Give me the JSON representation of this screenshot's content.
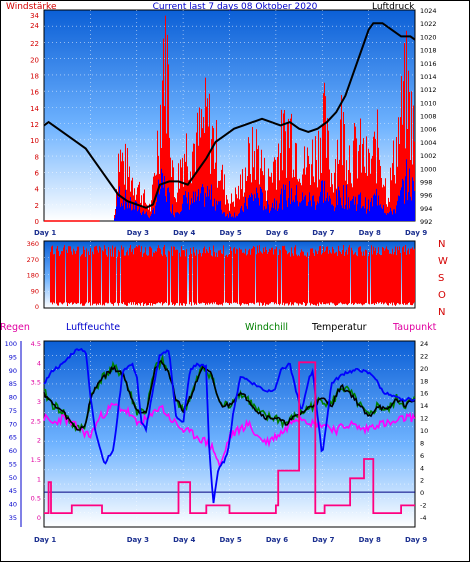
{
  "title": "Current last 7 days 08 Oktober 2020",
  "colors": {
    "bg_top": "#0b5fd6",
    "bg_bottom": "#ffffff",
    "wind_max": "#ff0000",
    "wind_avg": "#0000ff",
    "pressure": "#000000",
    "direction": "#ff0000",
    "humidity": "#0000ff",
    "windchill": "#008000",
    "temperature": "#000000",
    "dewpoint": "#ff00ff",
    "rain": "#ff0080",
    "label_red": "#d40000",
    "label_blue": "#0000cc",
    "label_magenta": "#e000a0",
    "label_green": "#008000"
  },
  "days": [
    "Day 1",
    "Day 3",
    "Day 4",
    "Day 5",
    "Day 6",
    "Day 7",
    "Day 8",
    "Day 9"
  ],
  "chart_data": [
    {
      "type": "line",
      "name": "wind-pressure",
      "title": "Current last 7 days 08 Oktober 2020",
      "left_label": "Windstärke",
      "right_label": "Luftdruck",
      "left_ticks": [
        "34",
        "24",
        "22",
        "20",
        "18",
        "16",
        "14",
        "12",
        "10",
        "8",
        "6",
        "4",
        "2",
        "0"
      ],
      "right_ticks": [
        "1024",
        "1022",
        "1020",
        "1018",
        "1016",
        "1014",
        "1012",
        "1010",
        "1008",
        "1006",
        "1004",
        "1002",
        "1000",
        "998",
        "996",
        "994",
        "992"
      ],
      "series": [
        {
          "name": "Luftdruck",
          "x": [
            1.0,
            1.1,
            1.3,
            1.5,
            1.7,
            1.9,
            2.1,
            2.3,
            2.5,
            2.6,
            2.8,
            3.0,
            3.2,
            3.35,
            3.5,
            3.7,
            3.9,
            4.1,
            4.3,
            4.5,
            4.7,
            4.9,
            5.1,
            5.3,
            5.5,
            5.7,
            5.9,
            6.1,
            6.3,
            6.5,
            6.7,
            6.9,
            7.1,
            7.3,
            7.5,
            7.7,
            7.9,
            8.0,
            8.1,
            8.3,
            8.5,
            8.7,
            8.9,
            9.0
          ],
          "values": [
            1006.5,
            1007,
            1006,
            1005,
            1004,
            1003,
            1001,
            999,
            997,
            996,
            995,
            994.5,
            994,
            994.5,
            997.5,
            998,
            998,
            997.5,
            999.5,
            1001.5,
            1004,
            1005,
            1006,
            1006.5,
            1007,
            1007.5,
            1007,
            1006.5,
            1007,
            1006,
            1005.5,
            1006,
            1007,
            1008.5,
            1011,
            1015,
            1019,
            1021,
            1022,
            1022,
            1021,
            1020,
            1020,
            1019.5
          ]
        },
        {
          "name": "Windstärke (Max)",
          "x": [
            1.0,
            2.5,
            2.6,
            2.9,
            3.0,
            3.2,
            3.3,
            3.5,
            3.6,
            3.8,
            4.0,
            4.3,
            4.5,
            4.7,
            4.9,
            5.0,
            5.2,
            5.4,
            5.6,
            5.8,
            6.0,
            6.3,
            6.6,
            6.9,
            7.0,
            7.2,
            7.4,
            7.6,
            7.8,
            8.0,
            8.2,
            8.4,
            8.6,
            8.8,
            9.0
          ],
          "values": [
            0,
            0,
            11,
            7,
            6,
            3,
            2,
            18,
            34,
            4,
            12,
            13,
            17,
            12,
            5,
            3,
            5,
            10,
            12,
            6,
            11,
            16,
            9,
            12,
            18,
            7,
            16,
            11,
            12,
            9,
            13,
            4,
            13,
            22,
            13
          ]
        },
        {
          "name": "Windstärke (Mittel)",
          "x": [
            1.0,
            2.5,
            2.6,
            2.9,
            3.0,
            3.2,
            3.3,
            3.5,
            3.6,
            3.8,
            4.0,
            4.3,
            4.5,
            4.7,
            4.9,
            5.0,
            5.2,
            5.4,
            5.6,
            5.8,
            6.0,
            6.3,
            6.6,
            6.9,
            7.0,
            7.2,
            7.4,
            7.6,
            7.8,
            8.0,
            8.2,
            8.4,
            8.6,
            8.8,
            9.0
          ],
          "values": [
            0,
            0,
            4,
            2,
            2,
            1,
            0.5,
            5,
            5,
            1,
            3,
            3,
            4,
            3,
            1,
            1,
            1,
            3,
            4,
            2,
            3,
            4,
            3,
            3,
            5,
            2,
            4,
            3,
            3,
            2,
            4,
            1,
            2,
            6,
            4
          ]
        }
      ]
    },
    {
      "type": "scatter",
      "name": "wind-direction",
      "left_ticks": [
        "360",
        "270",
        "180",
        "90",
        "0"
      ],
      "right_labels": [
        "N",
        "W",
        "S",
        "O",
        "N"
      ]
    },
    {
      "type": "line",
      "name": "weather-lower",
      "labels": [
        "Regen",
        "Luftfeuchte",
        "Windchill",
        "Temperatur",
        "Taupunkt"
      ],
      "humidity_ticks": [
        "100",
        "95",
        "90",
        "85",
        "80",
        "75",
        "70",
        "65",
        "60",
        "55",
        "50",
        "45",
        "40",
        "35"
      ],
      "rain_ticks": [
        "4.5",
        "4",
        "3.5",
        "3",
        "2.5",
        "2",
        "1.5",
        "1",
        "0.5",
        "0"
      ],
      "temp_ticks": [
        "24",
        "22",
        "20",
        "18",
        "16",
        "14",
        "12",
        "10",
        "8",
        "6",
        "4",
        "2",
        "0",
        "-2",
        "-4"
      ],
      "series": [
        {
          "name": "Luftfeuchte",
          "x": [
            1.0,
            1.2,
            1.4,
            1.6,
            1.75,
            1.9,
            2.0,
            2.1,
            2.3,
            2.5,
            2.7,
            2.9,
            3.0,
            3.1,
            3.2,
            3.5,
            3.7,
            3.85,
            4.0,
            4.15,
            4.3,
            4.5,
            4.55,
            4.65,
            4.75,
            4.85,
            4.95,
            5.1,
            5.25,
            5.4,
            5.6,
            5.8,
            6.0,
            6.1,
            6.3,
            6.55,
            6.7,
            6.8,
            6.9,
            7.0,
            7.2,
            7.5,
            7.8,
            8.1,
            8.3,
            8.5,
            8.7,
            9.0
          ],
          "values": [
            85,
            90,
            92,
            96,
            98,
            97,
            80,
            68,
            55,
            60,
            90,
            92,
            88,
            70,
            68,
            96,
            97,
            72,
            70,
            90,
            92,
            91,
            64,
            40,
            52,
            55,
            58,
            76,
            88,
            86,
            84,
            82,
            83,
            90,
            92,
            74,
            86,
            90,
            72,
            58,
            85,
            89,
            90,
            88,
            82,
            80,
            79,
            79
          ]
        },
        {
          "name": "Temperatur",
          "x": [
            1.0,
            1.2,
            1.4,
            1.6,
            1.75,
            1.9,
            2.0,
            2.2,
            2.5,
            2.7,
            2.9,
            3.0,
            3.2,
            3.4,
            3.55,
            3.7,
            3.85,
            4.0,
            4.2,
            4.4,
            4.6,
            4.8,
            5.0,
            5.2,
            5.4,
            5.6,
            5.8,
            6.0,
            6.2,
            6.4,
            6.6,
            6.8,
            7.0,
            7.2,
            7.4,
            7.6,
            7.8,
            8.0,
            8.2,
            8.4,
            8.6,
            8.8,
            9.0
          ],
          "values": [
            16,
            14,
            13,
            11,
            10,
            11,
            15,
            18,
            20,
            19,
            15,
            13,
            13,
            20,
            21,
            19,
            15,
            13,
            16,
            20,
            19,
            14,
            14,
            16,
            15,
            13,
            12,
            12,
            11,
            12,
            13,
            14,
            15,
            14,
            17,
            16,
            14,
            12,
            14,
            13,
            15,
            14,
            15
          ]
        },
        {
          "name": "Windchill",
          "x": [
            1.0,
            1.2,
            1.4,
            1.6,
            1.75,
            1.9,
            2.0,
            2.2,
            2.5,
            2.7,
            2.9,
            3.0,
            3.2,
            3.4,
            3.55,
            3.7,
            3.85,
            4.0,
            4.2,
            4.4,
            4.6,
            4.8,
            5.0,
            5.2,
            5.4,
            5.6,
            5.8,
            6.0,
            6.2,
            6.4,
            6.6,
            6.8,
            7.0,
            7.2,
            7.4,
            7.6,
            7.8,
            8.0,
            8.2,
            8.4,
            8.6,
            8.8,
            9.0
          ],
          "values": [
            16,
            14,
            13,
            11,
            10,
            11,
            15,
            18,
            20,
            19,
            15,
            13,
            13,
            20,
            21,
            19,
            15,
            13,
            16,
            20,
            19,
            14,
            14,
            16,
            15,
            13,
            12,
            12,
            11,
            12,
            13,
            14,
            15,
            14,
            17,
            16,
            14,
            12,
            14,
            13,
            15,
            14,
            15
          ]
        },
        {
          "name": "Taupunkt",
          "x": [
            1.0,
            1.2,
            1.4,
            1.6,
            1.8,
            2.0,
            2.2,
            2.5,
            2.8,
            3.0,
            3.3,
            3.5,
            3.7,
            4.0,
            4.3,
            4.5,
            4.65,
            4.8,
            5.0,
            5.2,
            5.4,
            5.6,
            5.8,
            6.0,
            6.2,
            6.4,
            6.6,
            6.8,
            7.0,
            7.3,
            7.6,
            7.9,
            8.2,
            8.5,
            8.8,
            9.0
          ],
          "values": [
            12,
            11,
            12,
            11,
            10,
            9,
            12,
            14,
            13,
            11,
            12,
            14,
            12,
            10,
            9,
            8,
            7,
            4,
            9,
            10,
            11,
            9,
            8,
            9,
            10,
            12,
            12,
            11,
            11,
            10,
            11,
            10,
            11,
            11,
            12,
            12
          ]
        },
        {
          "name": "Regen",
          "x": [
            1.0,
            1.1,
            1.15,
            1.5,
            1.6,
            2.2,
            2.25,
            3.3,
            3.4,
            3.8,
            3.9,
            4.1,
            4.15,
            4.45,
            4.5,
            4.9,
            5.0,
            6.0,
            6.05,
            6.4,
            6.5,
            6.8,
            6.85,
            7.0,
            7.05,
            7.4,
            7.6,
            7.8,
            7.9,
            8.0,
            8.1,
            8.6,
            8.7,
            9.0
          ],
          "values": [
            0.1,
            0.9,
            0.1,
            0.1,
            0.3,
            0.3,
            0.1,
            0.1,
            0.1,
            0.1,
            0.9,
            0.9,
            0.1,
            0.1,
            0.3,
            0.3,
            0.1,
            0.3,
            1.2,
            1.2,
            4.0,
            4.0,
            0.1,
            0.1,
            0.3,
            0.3,
            1.0,
            1.0,
            1.5,
            1.5,
            0.1,
            0.1,
            0.3,
            0.3
          ]
        }
      ]
    }
  ]
}
